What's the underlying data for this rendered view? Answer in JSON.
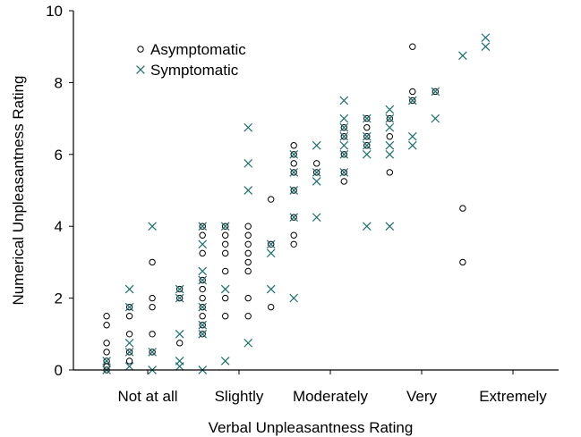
{
  "chart_data": {
    "type": "scatter",
    "xlabel": "Verbal Unpleasantness Rating",
    "ylabel": "Numerical Unpleasantness Rating",
    "xlim": [
      0,
      100
    ],
    "ylim": [
      0,
      10
    ],
    "x_ticks": [
      {
        "value": 10,
        "label": "Not at all"
      },
      {
        "value": 30,
        "label": "Slightly"
      },
      {
        "value": 50,
        "label": "Moderately"
      },
      {
        "value": 70,
        "label": "Very"
      },
      {
        "value": 90,
        "label": "Extremely"
      }
    ],
    "y_ticks": [
      0,
      2,
      4,
      6,
      8,
      10
    ],
    "legend": {
      "position": "top-left"
    },
    "series": [
      {
        "name": "Asymptomatic",
        "marker": "circle",
        "color": "#000000",
        "points": [
          [
            1,
            0
          ],
          [
            1,
            0.1
          ],
          [
            1,
            0.25
          ],
          [
            1,
            0.5
          ],
          [
            1,
            0.75
          ],
          [
            1,
            1.25
          ],
          [
            1,
            1.5
          ],
          [
            6,
            0.25
          ],
          [
            6,
            0.5
          ],
          [
            6,
            1
          ],
          [
            6,
            1.5
          ],
          [
            6,
            1.75
          ],
          [
            11,
            0.5
          ],
          [
            11,
            1
          ],
          [
            11,
            1.75
          ],
          [
            11,
            2
          ],
          [
            11,
            3
          ],
          [
            17,
            0.75
          ],
          [
            17,
            2
          ],
          [
            17,
            2.25
          ],
          [
            22,
            1
          ],
          [
            22,
            1.25
          ],
          [
            22,
            1.5
          ],
          [
            22,
            1.75
          ],
          [
            22,
            2
          ],
          [
            22,
            2.25
          ],
          [
            22,
            2.5
          ],
          [
            22,
            3.25
          ],
          [
            22,
            3.75
          ],
          [
            22,
            4
          ],
          [
            27,
            1.5
          ],
          [
            27,
            2
          ],
          [
            27,
            2.75
          ],
          [
            27,
            3.25
          ],
          [
            27,
            3.5
          ],
          [
            27,
            3.75
          ],
          [
            27,
            4
          ],
          [
            32,
            1.5
          ],
          [
            32,
            2
          ],
          [
            32,
            2.75
          ],
          [
            32,
            3
          ],
          [
            32,
            3.25
          ],
          [
            32,
            3.5
          ],
          [
            32,
            3.75
          ],
          [
            32,
            4
          ],
          [
            37,
            1.75
          ],
          [
            37,
            3.5
          ],
          [
            37,
            4.75
          ],
          [
            42,
            3.5
          ],
          [
            42,
            3.75
          ],
          [
            42,
            4.25
          ],
          [
            42,
            5
          ],
          [
            42,
            5.5
          ],
          [
            42,
            5.75
          ],
          [
            42,
            6
          ],
          [
            42,
            6.25
          ],
          [
            47,
            5.5
          ],
          [
            47,
            5.75
          ],
          [
            53,
            5.25
          ],
          [
            53,
            5.5
          ],
          [
            53,
            6
          ],
          [
            53,
            6.5
          ],
          [
            53,
            6.75
          ],
          [
            58,
            6.25
          ],
          [
            58,
            6.5
          ],
          [
            58,
            6.75
          ],
          [
            58,
            7
          ],
          [
            63,
            5.5
          ],
          [
            63,
            6.5
          ],
          [
            63,
            7
          ],
          [
            68,
            7.5
          ],
          [
            68,
            7.75
          ],
          [
            68,
            9
          ],
          [
            73,
            7.75
          ],
          [
            79,
            3
          ],
          [
            79,
            4.5
          ]
        ]
      },
      {
        "name": "Symptomatic",
        "marker": "x",
        "color": "#1a6e6e",
        "points": [
          [
            1,
            0
          ],
          [
            1,
            0.25
          ],
          [
            6,
            0.1
          ],
          [
            6,
            0.5
          ],
          [
            6,
            0.75
          ],
          [
            6,
            1.75
          ],
          [
            6,
            2.25
          ],
          [
            11,
            0
          ],
          [
            11,
            0.5
          ],
          [
            11,
            4
          ],
          [
            17,
            0.1
          ],
          [
            17,
            0.25
          ],
          [
            17,
            1
          ],
          [
            17,
            2
          ],
          [
            17,
            2.25
          ],
          [
            22,
            0
          ],
          [
            22,
            1
          ],
          [
            22,
            1.25
          ],
          [
            22,
            1.75
          ],
          [
            22,
            2.5
          ],
          [
            22,
            2.75
          ],
          [
            22,
            3.5
          ],
          [
            22,
            4
          ],
          [
            27,
            0.25
          ],
          [
            27,
            2.25
          ],
          [
            27,
            4
          ],
          [
            32,
            0.75
          ],
          [
            32,
            5
          ],
          [
            32,
            5.75
          ],
          [
            32,
            6.75
          ],
          [
            37,
            2.25
          ],
          [
            37,
            3.25
          ],
          [
            37,
            3.5
          ],
          [
            42,
            2
          ],
          [
            42,
            4.25
          ],
          [
            42,
            5
          ],
          [
            42,
            5.5
          ],
          [
            42,
            6
          ],
          [
            47,
            4.25
          ],
          [
            47,
            5.25
          ],
          [
            47,
            5.5
          ],
          [
            47,
            6.25
          ],
          [
            53,
            5.5
          ],
          [
            53,
            6
          ],
          [
            53,
            6.25
          ],
          [
            53,
            6.5
          ],
          [
            53,
            6.75
          ],
          [
            53,
            7
          ],
          [
            53,
            7.5
          ],
          [
            58,
            4
          ],
          [
            58,
            6
          ],
          [
            58,
            6.25
          ],
          [
            58,
            6.5
          ],
          [
            58,
            7
          ],
          [
            63,
            4
          ],
          [
            63,
            6
          ],
          [
            63,
            6.25
          ],
          [
            63,
            6.75
          ],
          [
            63,
            7
          ],
          [
            63,
            7.25
          ],
          [
            68,
            6.25
          ],
          [
            68,
            6.5
          ],
          [
            68,
            7.5
          ],
          [
            73,
            7
          ],
          [
            73,
            7.75
          ],
          [
            79,
            8.75
          ],
          [
            84,
            9
          ],
          [
            84,
            9.25
          ]
        ]
      }
    ]
  }
}
